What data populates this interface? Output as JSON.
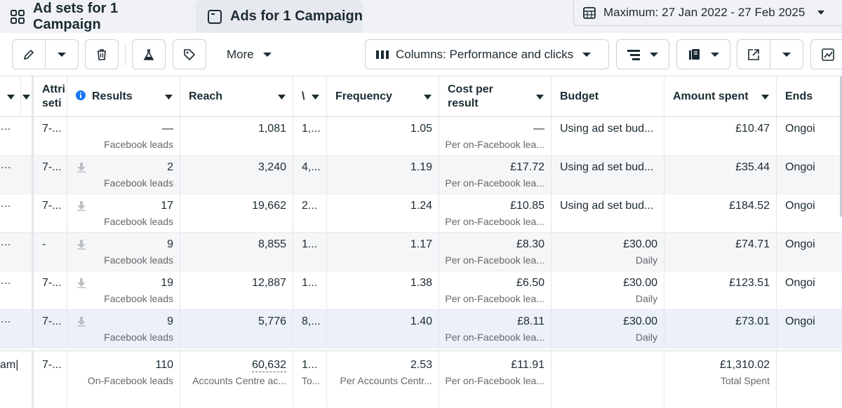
{
  "tabs": [
    {
      "label": "Ad sets for 1 Campaign",
      "icon": "grid-icon"
    },
    {
      "label": "Ads for 1 Campaign",
      "icon": "window-icon"
    }
  ],
  "date_range": {
    "label": "Maximum: 27 Jan 2022 - 27 Feb 2025",
    "icon": "calendar-icon"
  },
  "toolbar": {
    "more_label": "More",
    "columns_label": "Columns: Performance and clicks"
  },
  "columns": {
    "c1": "Att⁠ri",
    "c1b": "seti",
    "results": "Results",
    "reach": "Reach",
    "impressions": "\\",
    "frequency": "Frequency",
    "cost_line1": "Cost per",
    "cost_line2": "result",
    "budget": "Budget",
    "amount": "Amount spent",
    "ends": "Ends"
  },
  "rows": [
    {
      "attr": "7-...",
      "results": "—",
      "results_sub": "Facebook leads",
      "download": false,
      "reach": "1,081",
      "impr": "1,...",
      "freq": "1.05",
      "cost": "—",
      "cost_sub": "Per on-Facebook lea...",
      "budget": "Using ad set bud...",
      "budget_sub": "",
      "amount": "£10.47",
      "ends": "Ongoi"
    },
    {
      "attr": "7-...",
      "results": "2",
      "results_sub": "Facebook leads",
      "download": true,
      "reach": "3,240",
      "impr": "4,...",
      "freq": "1.19",
      "cost": "£17.72",
      "cost_sub": "Per on-Facebook lea...",
      "budget": "Using ad set bud...",
      "budget_sub": "",
      "amount": "£35.44",
      "ends": "Ongoi"
    },
    {
      "attr": "7-...",
      "results": "17",
      "results_sub": "Facebook leads",
      "download": true,
      "reach": "19,662",
      "impr": "2...",
      "freq": "1.24",
      "cost": "£10.85",
      "cost_sub": "Per on-Facebook lea...",
      "budget": "Using ad set bud...",
      "budget_sub": "",
      "amount": "£184.52",
      "ends": "Ongoi"
    },
    {
      "attr": "-",
      "results": "9",
      "results_sub": "Facebook leads",
      "download": true,
      "reach": "8,855",
      "impr": "1...",
      "freq": "1.17",
      "cost": "£8.30",
      "cost_sub": "Per on-Facebook lea...",
      "budget": "£30.00",
      "budget_sub": "Daily",
      "amount": "£74.71",
      "ends": "Ongoi"
    },
    {
      "attr": "7-...",
      "results": "19",
      "results_sub": "Facebook leads",
      "download": true,
      "reach": "12,887",
      "impr": "1...",
      "freq": "1.38",
      "cost": "£6.50",
      "cost_sub": "Per on-Facebook lea...",
      "budget": "£30.00",
      "budget_sub": "Daily",
      "amount": "£123.51",
      "ends": "Ongoi"
    },
    {
      "attr": "7-...",
      "results": "9",
      "results_sub": "Facebook leads",
      "download": true,
      "reach": "5,776",
      "impr": "8,...",
      "freq": "1.40",
      "cost": "£8.11",
      "cost_sub": "Per on-Facebook lea...",
      "budget": "£30.00",
      "budget_sub": "Daily",
      "amount": "£73.01",
      "ends": "Ongoi"
    }
  ],
  "totals": {
    "name": "am|",
    "attr": "7-...",
    "results": "110",
    "results_sub": "On-Facebook leads",
    "reach": "60,632",
    "reach_sub": "Accounts Centre ac...",
    "impr": "1...",
    "impr_sub": "To...",
    "freq": "2.53",
    "freq_sub": "Per Accounts Centr...",
    "cost": "£11.91",
    "cost_sub": "Per on-Facebook lea...",
    "amount": "£1,310.02",
    "amount_sub": "Total Spent"
  }
}
